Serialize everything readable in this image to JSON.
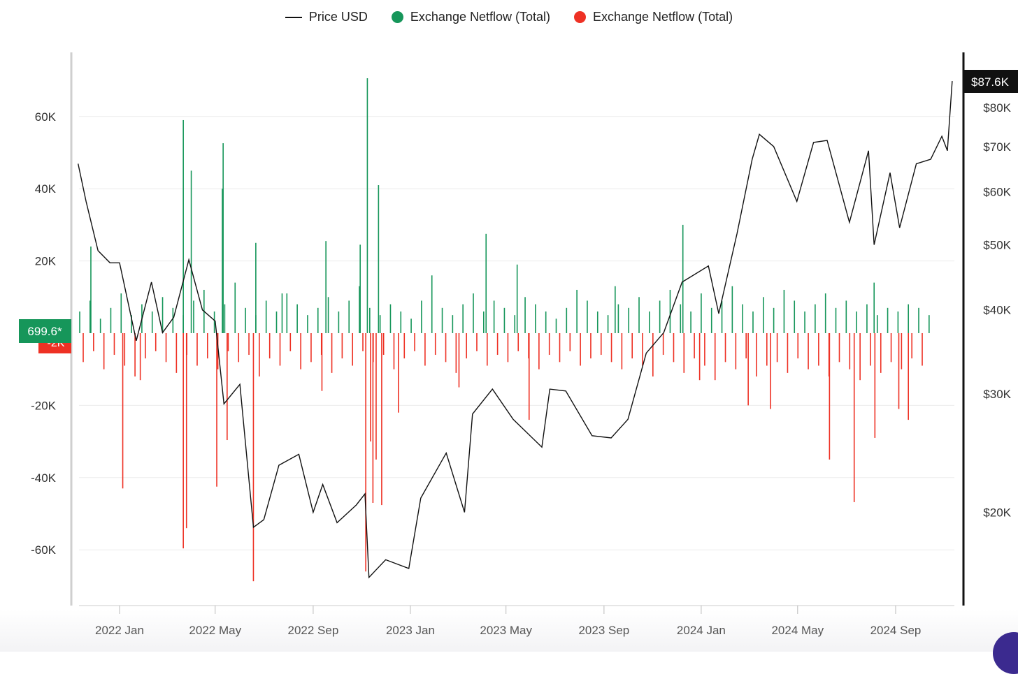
{
  "legend": [
    {
      "label": "Price USD",
      "color": "#111111",
      "marker": "line"
    },
    {
      "label": "Exchange Netflow (Total)",
      "color": "#16965a",
      "marker": "dot"
    },
    {
      "label": "Exchange Netflow (Total)",
      "color": "#ee3124",
      "marker": "dot"
    }
  ],
  "chart_data": {
    "type": "bar+line",
    "left_axis": {
      "ticks": [
        {
          "v": 60,
          "label": "60K"
        },
        {
          "v": 40,
          "label": "40K"
        },
        {
          "v": 20,
          "label": "20K"
        },
        {
          "v": -20,
          "label": "-20K"
        },
        {
          "v": -40,
          "label": "-40K"
        },
        {
          "v": -60,
          "label": "-60K"
        }
      ],
      "unit": "K BTC",
      "range": [
        -75,
        78
      ]
    },
    "right_axis": {
      "scale": "log",
      "ticks": [
        {
          "v": 80,
          "label": "$80K"
        },
        {
          "v": 70,
          "label": "$70K"
        },
        {
          "v": 60,
          "label": "$60K"
        },
        {
          "v": 50,
          "label": "$50K"
        },
        {
          "v": 40,
          "label": "$40K"
        },
        {
          "v": 30,
          "label": "$30K"
        },
        {
          "v": 20,
          "label": "$20K"
        }
      ],
      "unit": "K USD"
    },
    "x_ticks": [
      {
        "date": "2022-01-01",
        "label": "2022 Jan"
      },
      {
        "date": "2022-05-01",
        "label": "2022 May"
      },
      {
        "date": "2022-09-01",
        "label": "2022 Sep"
      },
      {
        "date": "2023-01-01",
        "label": "2023 Jan"
      },
      {
        "date": "2023-05-01",
        "label": "2023 May"
      },
      {
        "date": "2023-09-01",
        "label": "2023 Sep"
      },
      {
        "date": "2024-01-01",
        "label": "2024 Jan"
      },
      {
        "date": "2024-05-01",
        "label": "2024 May"
      },
      {
        "date": "2024-09-01",
        "label": "2024 Sep"
      }
    ],
    "current_labels": {
      "price": "$87.6K",
      "netflow_pos": "699.6*",
      "netflow_neg": "-2K"
    },
    "colors": {
      "inflow": "#16965a",
      "outflow": "#ee3124",
      "price": "#111111",
      "price_badge": "#111111"
    },
    "price_usd_k": [
      [
        "2021-11-10",
        66
      ],
      [
        "2021-11-20",
        58
      ],
      [
        "2021-12-05",
        49
      ],
      [
        "2021-12-20",
        47
      ],
      [
        "2022-01-01",
        47
      ],
      [
        "2022-01-22",
        36
      ],
      [
        "2022-02-10",
        44
      ],
      [
        "2022-02-24",
        37
      ],
      [
        "2022-03-10",
        39
      ],
      [
        "2022-03-29",
        47.5
      ],
      [
        "2022-04-15",
        40
      ],
      [
        "2022-05-01",
        38.5
      ],
      [
        "2022-05-12",
        29
      ],
      [
        "2022-06-01",
        31
      ],
      [
        "2022-06-18",
        19
      ],
      [
        "2022-07-01",
        19.5
      ],
      [
        "2022-07-20",
        23.5
      ],
      [
        "2022-08-14",
        24.4
      ],
      [
        "2022-09-01",
        20
      ],
      [
        "2022-09-13",
        22
      ],
      [
        "2022-10-01",
        19.3
      ],
      [
        "2022-10-25",
        20.5
      ],
      [
        "2022-11-05",
        21.3
      ],
      [
        "2022-11-10",
        16
      ],
      [
        "2022-12-01",
        17
      ],
      [
        "2022-12-30",
        16.5
      ],
      [
        "2023-01-14",
        21
      ],
      [
        "2023-02-15",
        24.5
      ],
      [
        "2023-03-10",
        20
      ],
      [
        "2023-03-20",
        28
      ],
      [
        "2023-04-14",
        30.5
      ],
      [
        "2023-05-10",
        27.5
      ],
      [
        "2023-06-15",
        25
      ],
      [
        "2023-06-25",
        30.5
      ],
      [
        "2023-07-15",
        30.3
      ],
      [
        "2023-08-17",
        26
      ],
      [
        "2023-09-10",
        25.8
      ],
      [
        "2023-10-01",
        27.5
      ],
      [
        "2023-10-24",
        34.5
      ],
      [
        "2023-11-15",
        37
      ],
      [
        "2023-12-08",
        44
      ],
      [
        "2024-01-10",
        46.5
      ],
      [
        "2024-01-23",
        39.5
      ],
      [
        "2024-02-15",
        52
      ],
      [
        "2024-03-05",
        67
      ],
      [
        "2024-03-14",
        73
      ],
      [
        "2024-04-01",
        70
      ],
      [
        "2024-04-30",
        58
      ],
      [
        "2024-05-21",
        71
      ],
      [
        "2024-06-07",
        71.5
      ],
      [
        "2024-07-05",
        54
      ],
      [
        "2024-07-29",
        69
      ],
      [
        "2024-08-05",
        50
      ],
      [
        "2024-08-25",
        64
      ],
      [
        "2024-09-06",
        53
      ],
      [
        "2024-09-27",
        66
      ],
      [
        "2024-10-15",
        67
      ],
      [
        "2024-10-29",
        72.5
      ],
      [
        "2024-11-05",
        69
      ],
      [
        "2024-11-11",
        87.6
      ]
    ],
    "netflow_spikes_k": [
      [
        "2021-11-26",
        24
      ],
      [
        "2022-03-22",
        59
      ],
      [
        "2022-04-01",
        45
      ],
      [
        "2022-05-10",
        40
      ],
      [
        "2022-05-11",
        52.6
      ],
      [
        "2022-06-21",
        25
      ],
      [
        "2022-09-17",
        25.5
      ],
      [
        "2022-10-30",
        24.5
      ],
      [
        "2022-11-08",
        70.6
      ],
      [
        "2022-11-22",
        41
      ],
      [
        "2023-04-06",
        27.5
      ],
      [
        "2023-05-15",
        19
      ],
      [
        "2023-09-15",
        13
      ],
      [
        "2023-12-09",
        30
      ],
      [
        "2024-08-05",
        14
      ],
      [
        "2022-07-24",
        11
      ],
      [
        "2022-01-05",
        -43
      ],
      [
        "2022-03-22",
        -59.6
      ],
      [
        "2022-03-26",
        -54
      ],
      [
        "2022-05-03",
        -42.5
      ],
      [
        "2022-05-16",
        -29.6
      ],
      [
        "2022-06-18",
        -68.7
      ],
      [
        "2022-01-27",
        -13
      ],
      [
        "2022-09-12",
        -16
      ],
      [
        "2022-11-06",
        -66
      ],
      [
        "2022-11-12",
        -30
      ],
      [
        "2022-11-15",
        -47
      ],
      [
        "2022-11-19",
        -35
      ],
      [
        "2022-11-26",
        -47.6
      ],
      [
        "2022-12-17",
        -22
      ],
      [
        "2023-03-03",
        -15
      ],
      [
        "2023-05-30",
        -24
      ],
      [
        "2023-12-52",
        0
      ],
      [
        "2023-12-30",
        -13
      ],
      [
        "2024-02-29",
        -20
      ],
      [
        "2024-03-28",
        -21
      ],
      [
        "2024-06-10",
        -35
      ],
      [
        "2024-07-11",
        -46.8
      ],
      [
        "2024-08-06",
        -29
      ],
      [
        "2024-09-05",
        -21
      ],
      [
        "2024-09-17",
        -24
      ]
    ],
    "netflow_biweekly_k": {
      "start": "2021-11-12",
      "step_days": 13,
      "inflow": [
        6,
        9,
        4,
        7,
        11,
        5,
        8,
        6,
        10,
        7,
        5,
        9,
        12,
        6,
        8,
        14,
        7,
        5,
        9,
        6,
        11,
        8,
        5,
        7,
        10,
        6,
        9,
        13,
        7,
        5,
        8,
        6,
        4,
        9,
        16,
        7,
        5,
        8,
        11,
        6,
        9,
        7,
        5,
        10,
        8,
        6,
        4,
        7,
        12,
        9,
        6,
        5,
        8,
        7,
        10,
        6,
        9,
        12,
        8,
        6,
        11,
        7,
        9,
        13,
        8,
        6,
        10,
        7,
        12,
        9,
        6,
        8,
        11,
        7,
        9,
        6,
        8,
        5,
        7,
        6,
        8,
        7,
        5,
        6
      ],
      "outflow": [
        -8,
        -5,
        -10,
        -6,
        -9,
        -12,
        -7,
        -5,
        -8,
        -11,
        -6,
        -9,
        -7,
        -10,
        -5,
        -8,
        -6,
        -12,
        -7,
        -9,
        -5,
        -10,
        -8,
        -6,
        -11,
        -7,
        -9,
        -5,
        -8,
        -6,
        -10,
        -7,
        -5,
        -9,
        -6,
        -8,
        -11,
        -7,
        -5,
        -9,
        -6,
        -8,
        -5,
        -7,
        -10,
        -6,
        -8,
        -5,
        -9,
        -7,
        -6,
        -8,
        -10,
        -7,
        -9,
        -12,
        -6,
        -8,
        -11,
        -7,
        -9,
        -13,
        -8,
        -10,
        -7,
        -12,
        -9,
        -8,
        -11,
        -7,
        -10,
        -9,
        -12,
        -8,
        -10,
        -13,
        -9,
        -11,
        -8,
        -10,
        -7,
        -9,
        -6,
        -5
      ]
    }
  }
}
